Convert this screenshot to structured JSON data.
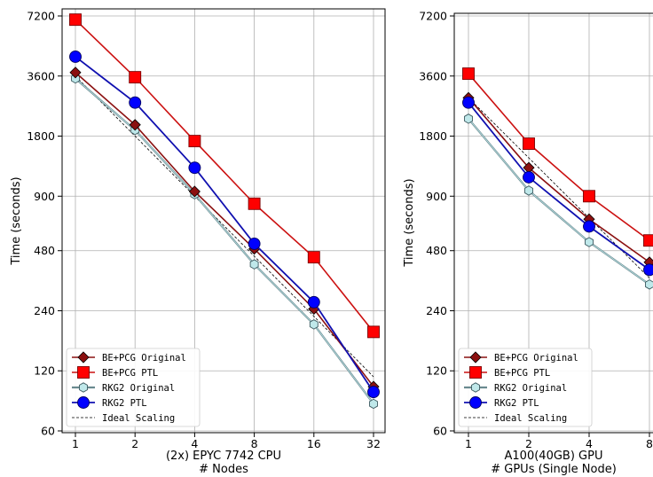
{
  "chart_data": [
    {
      "type": "line",
      "xscale": "log2",
      "yscale": "log",
      "x": [
        1,
        2,
        4,
        8,
        16,
        32
      ],
      "xticks": [
        "1",
        "2",
        "4",
        "8",
        "16",
        "32"
      ],
      "yticks": [
        60,
        120,
        240,
        480,
        900,
        1800,
        3600,
        7200
      ],
      "ylim": [
        60,
        7800
      ],
      "xlabel_line1": "(2x) EPYC 7742 CPU",
      "xlabel_line2": "# Nodes",
      "ylabel": "Time (seconds)",
      "grid": true,
      "legend_position": "bottom-left",
      "series": [
        {
          "name": "BE+PCG Original",
          "marker": "diamond",
          "color": "#8b1010",
          "fill": "#8b1010",
          "values": [
            3750,
            2050,
            950,
            490,
            245,
            100
          ]
        },
        {
          "name": "BE+PCG PTL",
          "marker": "square",
          "color": "#cc1111",
          "fill": "#ff0000",
          "values": [
            6900,
            3550,
            1700,
            825,
            445,
            188
          ]
        },
        {
          "name": "RKG2 Original",
          "marker": "hexagon",
          "color": "#6a8a90",
          "fill": "#bfe8ea",
          "values": [
            3500,
            1930,
            920,
            410,
            205,
            82
          ]
        },
        {
          "name": "RKG2 PTL",
          "marker": "circle",
          "color": "#1010b0",
          "fill": "#0000ff",
          "values": [
            4500,
            2650,
            1250,
            520,
            265,
            94
          ]
        },
        {
          "name": "Ideal Scaling",
          "marker": "none",
          "color": "#000000",
          "dashed": true,
          "values": [
            3600,
            1800,
            900,
            450,
            225,
            112
          ]
        }
      ]
    },
    {
      "type": "line",
      "xscale": "log2",
      "yscale": "log",
      "x": [
        1,
        2,
        4,
        8
      ],
      "xticks": [
        "1",
        "2",
        "4",
        "8"
      ],
      "yticks": [
        60,
        120,
        240,
        480,
        900,
        1800,
        3600,
        7200
      ],
      "ylim": [
        60,
        7200
      ],
      "xlabel_line1": "A100(40GB) GPU",
      "xlabel_line2": "# GPUs (Single Node)",
      "ylabel": "Time (seconds)",
      "grid": true,
      "legend_position": "bottom-left",
      "series": [
        {
          "name": "BE+PCG Original",
          "marker": "diamond",
          "color": "#8b1010",
          "fill": "#8b1010",
          "values": [
            2800,
            1250,
            690,
            420
          ]
        },
        {
          "name": "BE+PCG PTL",
          "marker": "square",
          "color": "#cc1111",
          "fill": "#ff0000",
          "values": [
            3700,
            1650,
            900,
            540
          ]
        },
        {
          "name": "RKG2 Original",
          "marker": "hexagon",
          "color": "#6a8a90",
          "fill": "#bfe8ea",
          "values": [
            2200,
            960,
            530,
            325
          ]
        },
        {
          "name": "RKG2 PTL",
          "marker": "circle",
          "color": "#1010b0",
          "fill": "#0000ff",
          "values": [
            2650,
            1120,
            635,
            385
          ]
        },
        {
          "name": "Ideal Scaling",
          "marker": "none",
          "color": "#000000",
          "dashed": true,
          "values": [
            2800,
            1400,
            700,
            350
          ]
        }
      ]
    }
  ]
}
